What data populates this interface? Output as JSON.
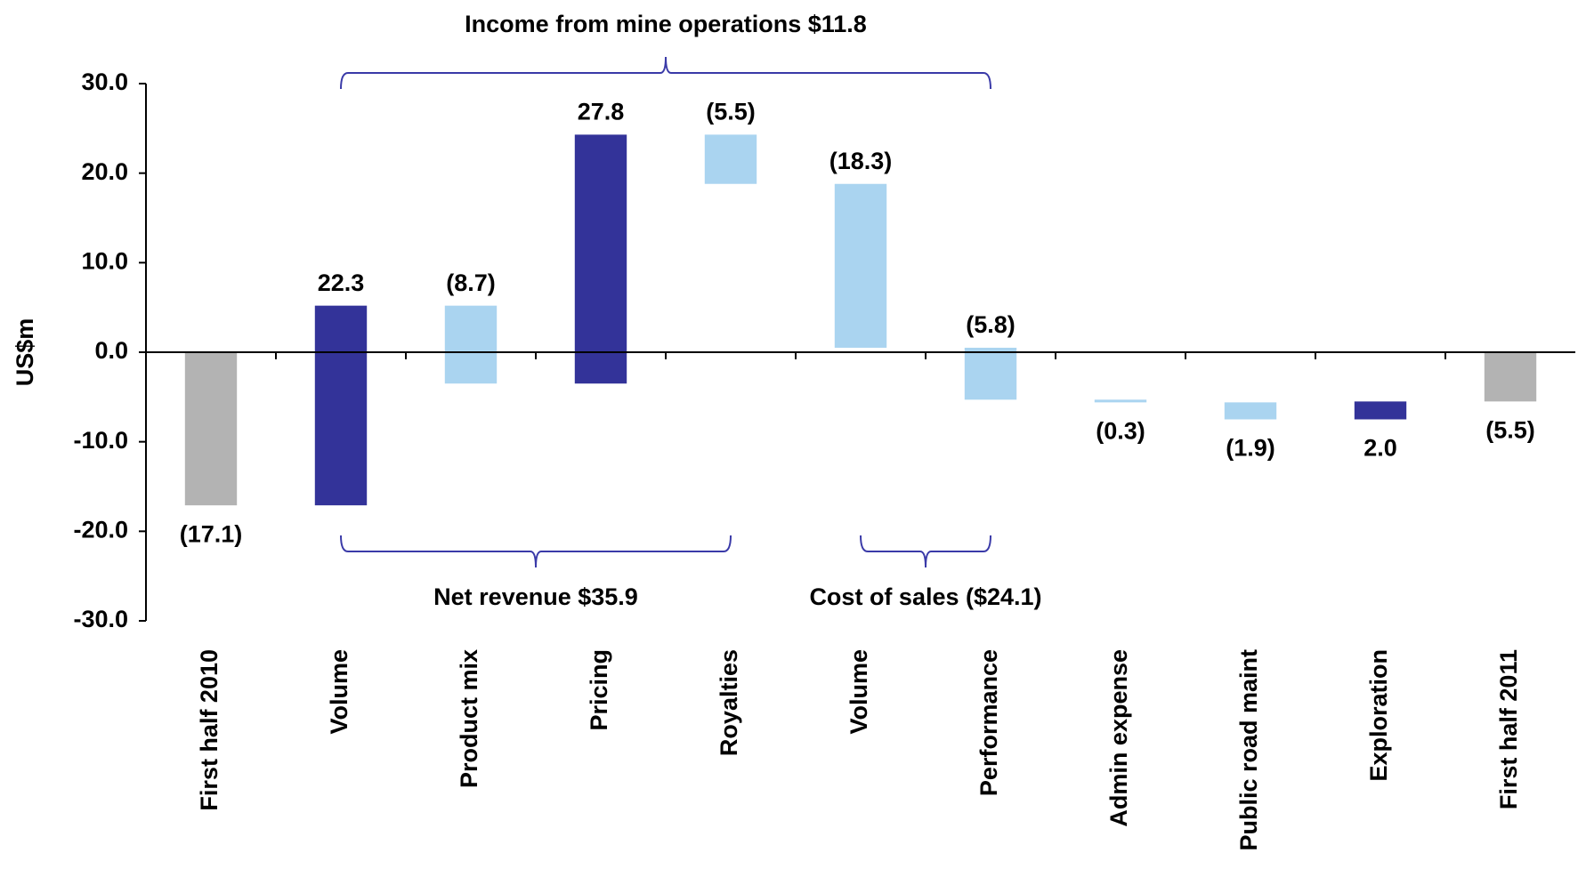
{
  "chart_data": {
    "type": "waterfall",
    "y_label": "US$m",
    "categories": [
      "First half 2010",
      "Volume",
      "Product mix",
      "Pricing",
      "Royalties",
      "Volume",
      "Performance",
      "Admin expense",
      "Public road maint",
      "Exploration",
      "First half 2011"
    ],
    "values": [
      -17.1,
      22.3,
      -8.7,
      27.8,
      -5.5,
      -18.3,
      -5.8,
      -0.3,
      -1.9,
      2.0,
      -5.5
    ],
    "value_labels": [
      "(17.1)",
      "22.3",
      "(8.7)",
      "27.8",
      "(5.5)",
      "(18.3)",
      "(5.8)",
      "(0.3)",
      "(1.9)",
      "2.0",
      "(5.5)"
    ],
    "total": [
      true,
      false,
      false,
      false,
      false,
      false,
      false,
      false,
      false,
      false,
      true
    ],
    "colors": [
      "#b3b3b3",
      "#333399",
      "#aad4f0",
      "#333399",
      "#aad4f0",
      "#aad4f0",
      "#aad4f0",
      "#aad4f0",
      "#aad4f0",
      "#333399",
      "#b3b3b3"
    ],
    "ylim": [
      -30,
      30
    ],
    "yticks": [
      {
        "value": -30,
        "label": "-30.0"
      },
      {
        "value": -20,
        "label": "-20.0"
      },
      {
        "value": -10,
        "label": "-10.0"
      },
      {
        "value": 0,
        "label": "0.0"
      },
      {
        "value": 10,
        "label": "10.0"
      },
      {
        "value": 20,
        "label": "20.0"
      },
      {
        "value": 30,
        "label": "30.0"
      }
    ],
    "annotations": [
      "Income from mine operations $11.8",
      "Net revenue $35.9",
      "Cost of sales ($24.1)"
    ]
  }
}
